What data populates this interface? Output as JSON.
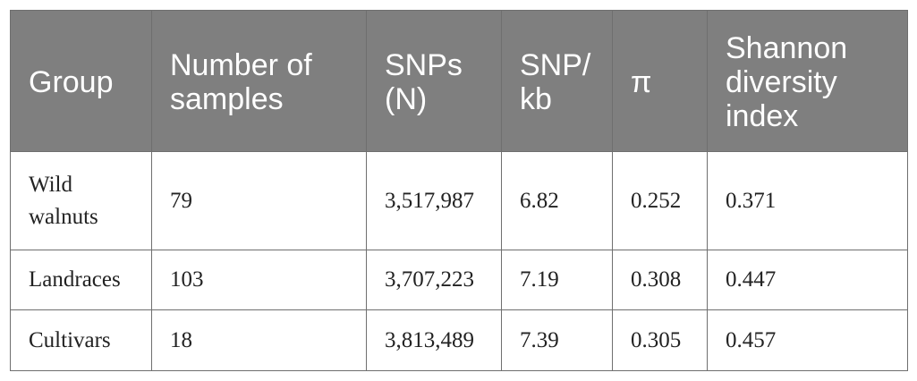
{
  "table": {
    "headers": [
      [
        "Group"
      ],
      [
        "Number of",
        "samples"
      ],
      [
        "SNPs",
        "(N)"
      ],
      [
        "SNP/",
        "kb"
      ],
      [
        "π"
      ],
      [
        "Shannon",
        "diversity",
        "index"
      ]
    ],
    "rows": [
      {
        "group": [
          "Wild",
          "walnuts"
        ],
        "samples": "79",
        "snps": "3,517,987",
        "snp_per_kb": "6.82",
        "pi": "0.252",
        "shannon": "0.371"
      },
      {
        "group": [
          "Landraces"
        ],
        "samples": "103",
        "snps": "3,707,223",
        "snp_per_kb": "7.19",
        "pi": "0.308",
        "shannon": "0.447"
      },
      {
        "group": [
          "Cultivars"
        ],
        "samples": "18",
        "snps": "3,813,489",
        "snp_per_kb": "7.39",
        "pi": "0.305",
        "shannon": "0.457"
      }
    ]
  },
  "colors": {
    "header_bg": "#7f7f7f",
    "header_text": "#ffffff",
    "border": "#6f6f6f",
    "body_text": "#222222"
  }
}
